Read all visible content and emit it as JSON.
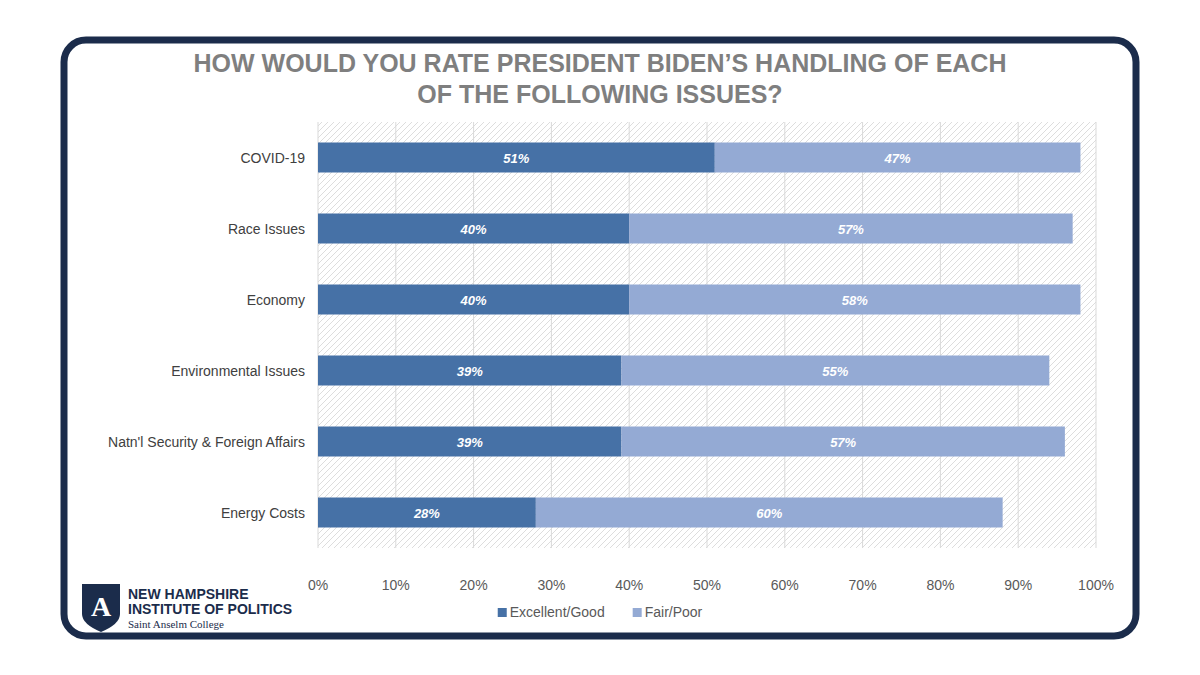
{
  "chart_data": {
    "type": "bar",
    "title": "HOW WOULD YOU RATE PRESIDENT BIDEN’S HANDLING OF EACH OF THE FOLLOWING ISSUES?",
    "orientation": "horizontal",
    "stacked": true,
    "data_labels": true,
    "grid": true,
    "legend": "bottom",
    "categories": [
      "COVID-19",
      "Race Issues",
      "Economy",
      "Environmental Issues",
      "Natn'l Security & Foreign Affairs",
      "Energy Costs"
    ],
    "series": [
      {
        "name": "Excellent/Good",
        "color": "#4671a6",
        "values": [
          51,
          40,
          40,
          39,
          39,
          28
        ],
        "value_labels": [
          "51%",
          "40%",
          "40%",
          "39%",
          "39%",
          "28%"
        ]
      },
      {
        "name": "Fair/Poor",
        "color": "#94aad4",
        "values": [
          47,
          57,
          58,
          55,
          57,
          60
        ],
        "value_labels": [
          "47%",
          "57%",
          "58%",
          "55%",
          "57%",
          "60%"
        ]
      }
    ],
    "xlim": [
      0,
      100
    ],
    "xticks": [
      {
        "value": 0,
        "label": "0%"
      },
      {
        "value": 10,
        "label": "10%"
      },
      {
        "value": 20,
        "label": "20%"
      },
      {
        "value": 30,
        "label": "30%"
      },
      {
        "value": 40,
        "label": "40%"
      },
      {
        "value": 50,
        "label": "50%"
      },
      {
        "value": 60,
        "label": "60%"
      },
      {
        "value": 70,
        "label": "70%"
      },
      {
        "value": 80,
        "label": "80%"
      },
      {
        "value": 90,
        "label": "90%"
      },
      {
        "value": 100,
        "label": "100%"
      }
    ]
  },
  "logo": {
    "mark": "A",
    "lines": [
      "NEW HAMPSHIRE",
      "INSTITUTE OF POLITICS",
      "Saint Anselm College"
    ]
  }
}
